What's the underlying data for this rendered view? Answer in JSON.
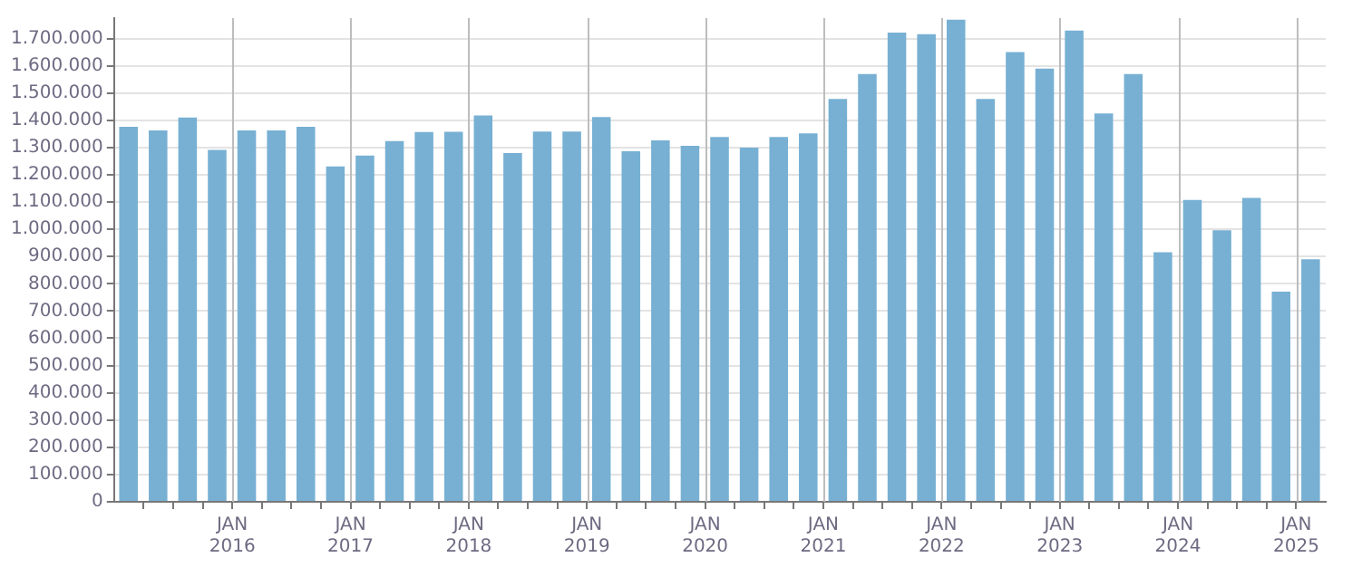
{
  "chart_data": {
    "type": "bar",
    "x": [
      "2015-02-15",
      "2015-05-15",
      "2015-08-15",
      "2015-11-15",
      "2016-02-15",
      "2016-05-15",
      "2016-08-15",
      "2016-11-15",
      "2017-02-15",
      "2017-05-15",
      "2017-08-15",
      "2017-11-15",
      "2018-02-15",
      "2018-05-15",
      "2018-08-15",
      "2018-11-15",
      "2019-02-15",
      "2019-05-15",
      "2019-08-15",
      "2019-11-15",
      "2020-02-15",
      "2020-05-15",
      "2020-08-15",
      "2020-11-15",
      "2021-02-15",
      "2021-05-15",
      "2021-08-15",
      "2021-11-15",
      "2022-02-15",
      "2022-05-15",
      "2022-08-15",
      "2022-11-15",
      "2023-02-15",
      "2023-05-15",
      "2023-08-15",
      "2023-11-15",
      "2024-02-15",
      "2024-05-15",
      "2024-08-15",
      "2024-11-15",
      "2025-02-15"
    ],
    "values": [
      1376000,
      1363000,
      1410000,
      1291000,
      1363000,
      1363000,
      1376000,
      1231000,
      1271000,
      1324000,
      1357000,
      1358000,
      1418000,
      1280000,
      1359000,
      1359000,
      1412000,
      1286000,
      1326000,
      1306000,
      1339000,
      1300000,
      1339000,
      1352000,
      1478000,
      1570000,
      1722000,
      1716000,
      1769000,
      1478000,
      1650000,
      1590000,
      1729000,
      1425000,
      1570000,
      916000,
      1108000,
      996000,
      1115000,
      771000,
      890000
    ],
    "color": "#77b0d3",
    "xlim": [
      "2015-01",
      "2025-04"
    ],
    "xticks": [
      {
        "value": "2015-04",
        "label": null
      },
      {
        "value": "2015-07",
        "label": null
      },
      {
        "value": "2015-10",
        "label": null
      },
      {
        "value": "2016-01",
        "label": "JAN 2016"
      },
      {
        "value": "2016-04",
        "label": null
      },
      {
        "value": "2016-07",
        "label": null
      },
      {
        "value": "2016-10",
        "label": null
      },
      {
        "value": "2017-01",
        "label": "JAN 2017"
      },
      {
        "value": "2017-04",
        "label": null
      },
      {
        "value": "2017-07",
        "label": null
      },
      {
        "value": "2017-10",
        "label": null
      },
      {
        "value": "2018-01",
        "label": "JAN 2018"
      },
      {
        "value": "2018-04",
        "label": null
      },
      {
        "value": "2018-07",
        "label": null
      },
      {
        "value": "2018-10",
        "label": null
      },
      {
        "value": "2019-01",
        "label": "JAN 2019"
      },
      {
        "value": "2019-04",
        "label": null
      },
      {
        "value": "2019-07",
        "label": null
      },
      {
        "value": "2019-10",
        "label": null
      },
      {
        "value": "2020-01",
        "label": "JAN 2020"
      },
      {
        "value": "2020-04",
        "label": null
      },
      {
        "value": "2020-07",
        "label": null
      },
      {
        "value": "2020-10",
        "label": null
      },
      {
        "value": "2021-01",
        "label": "JAN 2021"
      },
      {
        "value": "2021-04",
        "label": null
      },
      {
        "value": "2021-07",
        "label": null
      },
      {
        "value": "2021-10",
        "label": null
      },
      {
        "value": "2022-01",
        "label": "JAN 2022"
      },
      {
        "value": "2022-04",
        "label": null
      },
      {
        "value": "2022-07",
        "label": null
      },
      {
        "value": "2022-10",
        "label": null
      },
      {
        "value": "2023-01",
        "label": "JAN 2023"
      },
      {
        "value": "2023-04",
        "label": null
      },
      {
        "value": "2023-07",
        "label": null
      },
      {
        "value": "2023-10",
        "label": null
      },
      {
        "value": "2024-01",
        "label": "JAN 2024"
      },
      {
        "value": "2024-04",
        "label": null
      },
      {
        "value": "2024-07",
        "label": null
      },
      {
        "value": "2024-10",
        "label": null
      },
      {
        "value": "2025-01",
        "label": "JAN 2025"
      }
    ],
    "ylim": [
      0,
      1775000
    ],
    "yticks": [
      0,
      {
        "value": 100000,
        "label": "100.000"
      },
      {
        "value": 200000,
        "label": "200.000"
      },
      {
        "value": 300000,
        "label": "300.000"
      },
      {
        "value": 400000,
        "label": "400.000"
      },
      {
        "value": 500000,
        "label": "500.000"
      },
      {
        "value": 600000,
        "label": "600.000"
      },
      {
        "value": 700000,
        "label": "700.000"
      },
      {
        "value": 800000,
        "label": "800.000"
      },
      {
        "value": 900000,
        "label": "900.000"
      },
      {
        "value": 1000000,
        "label": "1.000.000"
      },
      {
        "value": 1100000,
        "label": "1.100.000"
      },
      {
        "value": 1200000,
        "label": "1.200.000"
      },
      {
        "value": 1300000,
        "label": "1.300.000"
      },
      {
        "value": 1400000,
        "label": "1.400.000"
      },
      {
        "value": 1500000,
        "label": "1.500.000"
      },
      {
        "value": 1600000,
        "label": "1.600.000"
      },
      {
        "value": 1700000,
        "label": "1.700.000"
      }
    ],
    "grid": true
  }
}
